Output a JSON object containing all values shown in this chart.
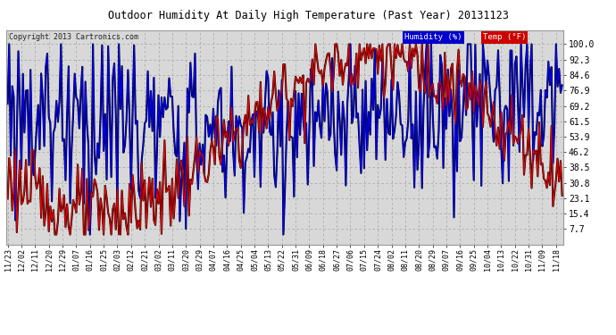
{
  "title": "Outdoor Humidity At Daily High Temperature (Past Year) 20131123",
  "copyright": "Copyright 2013 Cartronics.com",
  "legend_humidity": "Humidity (%)",
  "legend_temp": "Temp (°F)",
  "humidity_color": "#0000EE",
  "temp_color": "#DD0000",
  "outline_color": "#000000",
  "bg_color": "#FFFFFF",
  "plot_bg_color": "#D8D8D8",
  "grid_color": "#AAAAAA",
  "yticks": [
    7.7,
    15.4,
    23.1,
    30.8,
    38.5,
    46.2,
    53.9,
    61.5,
    69.2,
    76.9,
    84.6,
    92.3,
    100.0
  ],
  "x_labels": [
    "11/23",
    "12/02",
    "12/11",
    "12/20",
    "12/29",
    "01/07",
    "01/16",
    "01/25",
    "02/03",
    "02/12",
    "02/21",
    "03/02",
    "03/11",
    "03/20",
    "03/29",
    "04/07",
    "04/16",
    "04/25",
    "05/04",
    "05/13",
    "05/22",
    "05/31",
    "06/09",
    "06/18",
    "06/27",
    "07/06",
    "07/15",
    "07/24",
    "08/02",
    "08/11",
    "08/20",
    "08/29",
    "09/07",
    "09/16",
    "09/25",
    "10/04",
    "10/13",
    "10/22",
    "10/31",
    "11/09",
    "11/18"
  ],
  "xtick_positions": [
    0,
    9,
    18,
    27,
    36,
    45,
    54,
    63,
    72,
    81,
    90,
    99,
    108,
    117,
    126,
    135,
    144,
    153,
    162,
    171,
    180,
    189,
    198,
    207,
    216,
    225,
    234,
    243,
    252,
    261,
    270,
    279,
    288,
    297,
    306,
    315,
    324,
    333,
    342,
    351,
    360
  ],
  "figsize": [
    6.9,
    3.75
  ],
  "dpi": 100
}
